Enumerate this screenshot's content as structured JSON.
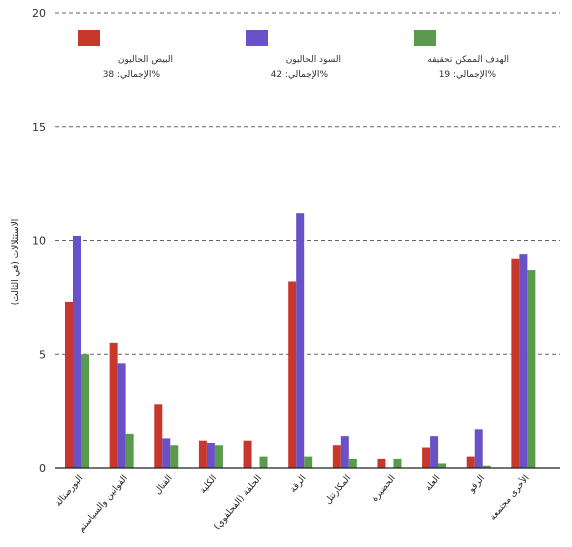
{
  "chart_data": {
    "type": "bar",
    "ylabel": "الاستثلالات (في الثالث)",
    "ylim": [
      0,
      20
    ],
    "yticks": [
      0,
      5,
      10,
      15,
      20
    ],
    "grid": true,
    "legend_position": "top",
    "categories": [
      "البورصتالة",
      "القوانين والسياستم",
      "القتال",
      "الكلية",
      "الحلفة (الفحلقوي)",
      "الرقة",
      "المكارتتل",
      "الحضيرة",
      "العلة",
      "الرقو",
      "الأخرى مجتمعة"
    ],
    "series": [
      {
        "name": "البيض الحاليون",
        "subtitle": "الإجمالي: 38%",
        "color": "#c8372c",
        "values": [
          7.3,
          5.5,
          2.8,
          1.2,
          1.2,
          8.2,
          1.0,
          0.4,
          0.9,
          0.5,
          9.2
        ]
      },
      {
        "name": "السود الحاليون",
        "subtitle": "الإجمالي: 42%",
        "color": "#6a51c8",
        "values": [
          10.2,
          4.6,
          1.3,
          1.1,
          0.0,
          11.2,
          1.4,
          0.0,
          1.4,
          1.7,
          9.4
        ]
      },
      {
        "name": "الهدف الممكن تحقيقه",
        "subtitle": "الإجمالي: 19%",
        "color": "#5a9a4c",
        "values": [
          5.0,
          1.5,
          1.0,
          1.0,
          0.5,
          0.5,
          0.4,
          0.4,
          0.2,
          0.1,
          8.7
        ]
      }
    ]
  }
}
